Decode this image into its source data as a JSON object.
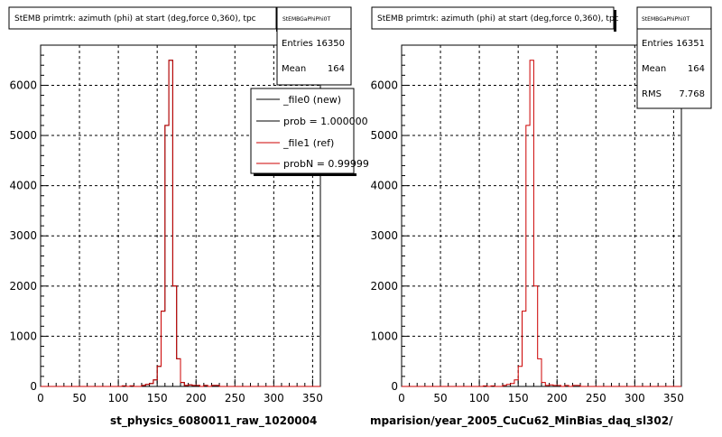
{
  "chart_data": [
    {
      "type": "line",
      "title": "StEMB primtrk: azimuth (phi) at start (deg,force 0,360), tpc",
      "xlabel": "st_physics_6080011_raw_1020004",
      "xlim": [
        0,
        360
      ],
      "ylim": [
        0,
        6800
      ],
      "xticks": [
        0,
        50,
        100,
        150,
        200,
        250,
        300,
        350
      ],
      "yticks": [
        0,
        1000,
        2000,
        3000,
        4000,
        5000,
        6000
      ],
      "grid": true,
      "stats": {
        "header": "StEMBGaPhiPhi0T",
        "entries_label": "Entries",
        "entries": "16350",
        "mean_label": "Mean",
        "mean": "164"
      },
      "legend": {
        "position": "top-right",
        "entries": [
          {
            "label": "_file0 (new)",
            "color": "#000000"
          },
          {
            "label": "prob = 1.000000",
            "color": "#000000"
          },
          {
            "label": "_file1 (ref)",
            "color": "#cc0000"
          },
          {
            "label": "probN = 0.99999",
            "color": "#cc0000"
          }
        ]
      },
      "bin_edges": [
        0,
        90,
        95,
        100,
        105,
        110,
        115,
        120,
        125,
        130,
        135,
        140,
        145,
        150,
        155,
        160,
        165,
        170,
        175,
        180,
        185,
        190,
        195,
        200,
        205,
        210,
        215,
        220,
        225,
        230,
        235,
        240,
        245,
        250,
        360
      ],
      "series": [
        {
          "color": "#000000",
          "values": [
            0,
            0,
            0,
            0,
            10,
            0,
            10,
            0,
            0,
            20,
            40,
            60,
            130,
            400,
            1500,
            5200,
            6500,
            2000,
            550,
            80,
            20,
            30,
            20,
            20,
            0,
            20,
            0,
            20,
            20,
            0,
            0,
            0,
            0,
            0
          ]
        },
        {
          "color": "#cc0000",
          "values": [
            0,
            0,
            0,
            0,
            10,
            0,
            10,
            0,
            0,
            20,
            40,
            60,
            130,
            400,
            1500,
            5200,
            6500,
            2000,
            550,
            80,
            20,
            30,
            20,
            20,
            0,
            20,
            0,
            20,
            20,
            0,
            0,
            0,
            0,
            0
          ]
        }
      ]
    },
    {
      "type": "line",
      "title": "StEMB primtrk: azimuth (phi) at start (deg,force 0,360), tpc",
      "xlabel": "mparision/year_2005_CuCu62_MinBias_daq_sl302/",
      "xlim": [
        0,
        360
      ],
      "ylim": [
        0,
        6800
      ],
      "xticks": [
        0,
        50,
        100,
        150,
        200,
        250,
        300,
        350
      ],
      "yticks": [
        0,
        1000,
        2000,
        3000,
        4000,
        5000,
        6000
      ],
      "grid": true,
      "stats": {
        "header": "StEMBGaPhiPhi0T",
        "entries_label": "Entries",
        "entries": "16351",
        "mean_label": "Mean",
        "mean": "164",
        "rms_label": "RMS",
        "rms": "7.768"
      },
      "bin_edges": [
        0,
        90,
        95,
        100,
        105,
        110,
        115,
        120,
        125,
        130,
        135,
        140,
        145,
        150,
        155,
        160,
        165,
        170,
        175,
        180,
        185,
        190,
        195,
        200,
        205,
        210,
        215,
        220,
        225,
        230,
        235,
        240,
        245,
        250,
        360
      ],
      "series": [
        {
          "color": "#cc0000",
          "values": [
            0,
            0,
            0,
            0,
            10,
            0,
            10,
            0,
            0,
            20,
            40,
            60,
            130,
            400,
            1500,
            5200,
            6500,
            2000,
            550,
            80,
            20,
            30,
            20,
            20,
            0,
            20,
            0,
            20,
            20,
            0,
            0,
            0,
            0,
            0
          ]
        }
      ]
    }
  ]
}
